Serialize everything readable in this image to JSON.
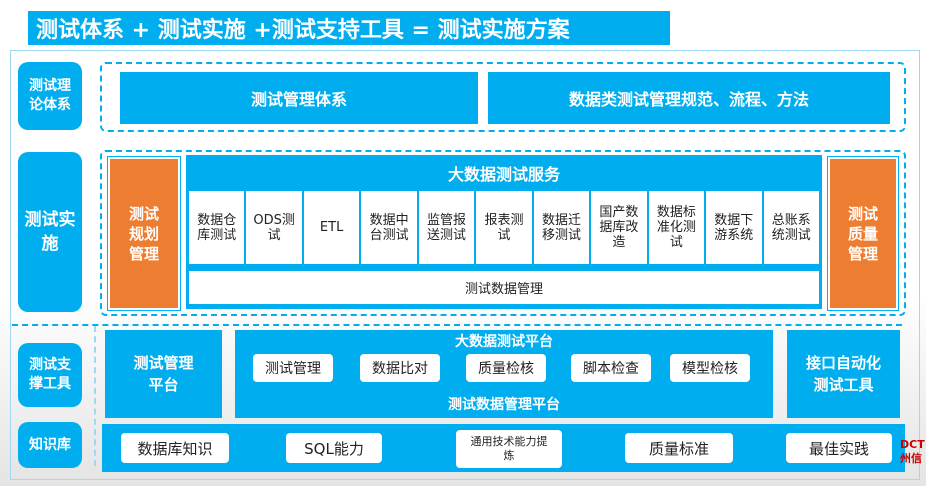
{
  "title": "测试体系 + 测试实施 +测试支持工具 = 测试实施方案",
  "side_labels": [
    "测试理论体系",
    "测试实施",
    "测试支撑工具",
    "知识库"
  ],
  "theory": [
    "测试管理体系",
    "数据类测试管理规范、流程、方法"
  ],
  "implementation": {
    "left": "测试规划管理",
    "right": "测试质量管理",
    "service_title": "大数据测试服务",
    "services": [
      "数据仓库测试",
      "ODS测试",
      "ETL",
      "数据中台测试",
      "监管报送测试",
      "报表测试",
      "数据迁移测试",
      "国产数据库改造",
      "数据标准化测试",
      "数据下游系统",
      "总账系统测试"
    ],
    "data_mgmt": "测试数据管理"
  },
  "tools": {
    "mgmt_platform": "测试管理平台",
    "platform_title": "大数据测试平台",
    "platform_items": [
      "测试管理",
      "数据比对",
      "质量检核",
      "脚本检查",
      "模型检核"
    ],
    "data_platform": "测试数据管理平台",
    "api_tool": "接口自动化测试工具"
  },
  "knowledge": [
    "数据库知识",
    "SQL能力",
    "通用技术能力提炼",
    "质量标准",
    "最佳实践"
  ],
  "logo": "DCT 州信",
  "colors": {
    "blue": "#00aeef",
    "orange": "#ed7d31"
  }
}
